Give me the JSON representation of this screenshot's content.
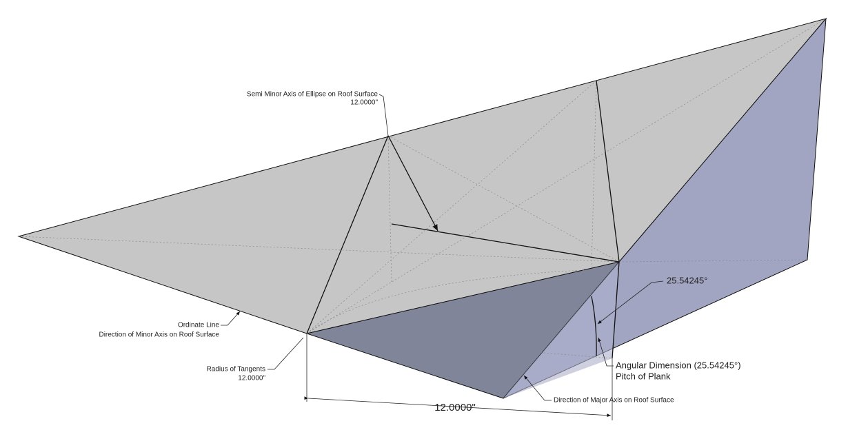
{
  "labels": {
    "semi_minor": [
      "Semi Minor Axis of Ellipse on Roof Surface",
      "12.0000\""
    ],
    "angle_value": "25.54245°",
    "ordinate": [
      "Ordinate Line",
      "Direction of  Minor Axis on Roof Surface"
    ],
    "radius": [
      "Radius of Tangents",
      "12.0000\""
    ],
    "angular_dimension": [
      "Angular Dimension (25.54245°)",
      "Pitch of Plank"
    ],
    "major_axis": "Direction of Major Axis on Roof Surface",
    "dimension": "12.0000\""
  }
}
